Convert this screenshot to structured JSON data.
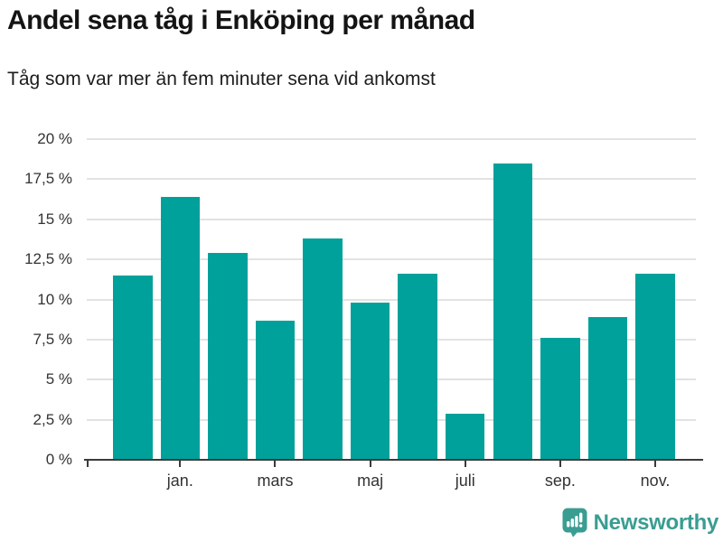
{
  "header": {
    "title": "Andel sena tåg i Enköping per månad",
    "subtitle": "Tåg som var mer än fem minuter sena vid ankomst"
  },
  "chart_data": {
    "type": "bar",
    "categories": [
      "",
      "jan.",
      "",
      "mars",
      "",
      "maj",
      "",
      "juli",
      "",
      "sep.",
      "",
      "nov."
    ],
    "values": [
      11.5,
      16.4,
      12.9,
      8.7,
      13.8,
      9.8,
      11.6,
      2.9,
      18.5,
      7.6,
      8.9,
      11.6
    ],
    "title": "Andel sena tåg i Enköping per månad",
    "subtitle": "Tåg som var mer än fem minuter sena vid ankomst",
    "xlabel": "",
    "ylabel": "",
    "ylim": [
      0,
      20
    ],
    "ytick_step": 2.5,
    "ytick_labels": [
      "20 %",
      "17,5 %",
      "15 %",
      "12,5 %",
      "10 %",
      "7,5 %",
      "5 %",
      "2,5 %",
      "0 %"
    ],
    "grid": true,
    "legend": "none",
    "bar_color": "#00a19a"
  },
  "colors": {
    "bar": "#00a19a",
    "gridline": "#e2e2e2",
    "axis": "#3b3b3b",
    "tick_label": "#333333",
    "title": "#141414",
    "logo": "#3a9d92"
  },
  "footer": {
    "brand": "Newsworthy"
  }
}
